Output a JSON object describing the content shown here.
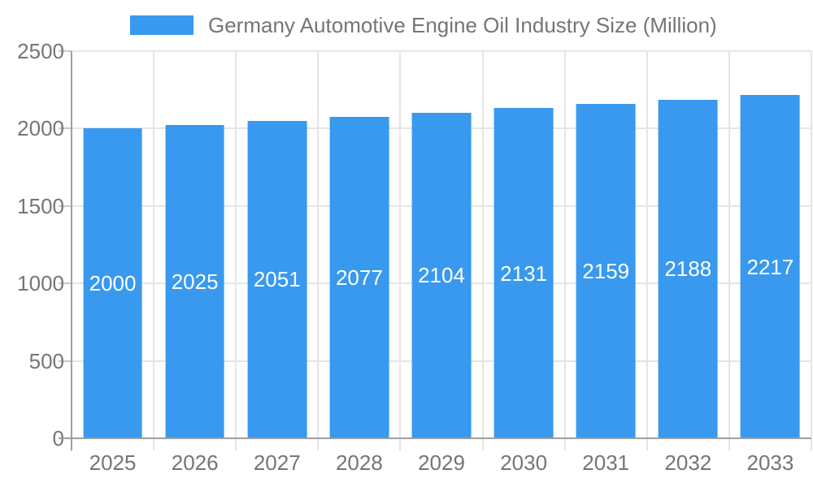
{
  "chart_data": {
    "type": "bar",
    "title": "Germany Automotive Engine Oil Industry Size (Million)",
    "categories": [
      "2025",
      "2026",
      "2027",
      "2028",
      "2029",
      "2030",
      "2031",
      "2032",
      "2033"
    ],
    "values": [
      2000,
      2025,
      2051,
      2077,
      2104,
      2131,
      2159,
      2188,
      2217
    ],
    "xlabel": "",
    "ylabel": "",
    "ylim": [
      0,
      2500
    ],
    "yticks": [
      0,
      500,
      1000,
      1500,
      2000,
      2500
    ],
    "grid": true,
    "legend_position": "top",
    "value_labels": "inside-middle",
    "colors": {
      "bar": "#3899ee",
      "grid": "#e5e5e5",
      "axis": "#9e9e9e",
      "tick": "#c9c9c9",
      "text": "#757575",
      "value_label": "#ffffff",
      "background": "#ffffff"
    }
  }
}
